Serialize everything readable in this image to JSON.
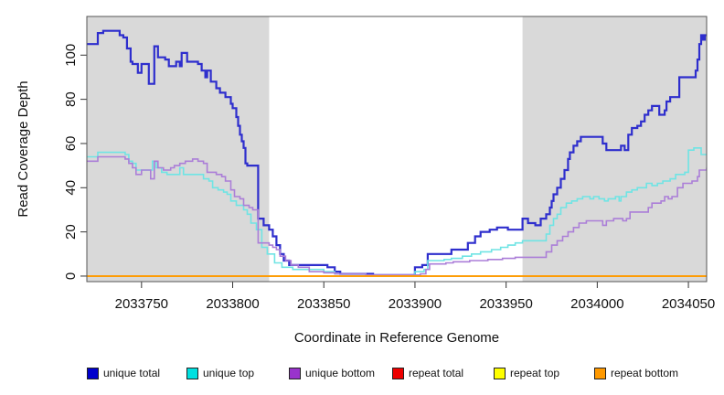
{
  "figure": {
    "x_axis": {
      "label": "Coordinate in Reference Genome",
      "tick_values": [
        2033750,
        2033800,
        2033850,
        2033900,
        2033950,
        2034000,
        2034050
      ],
      "tick_labels": [
        "2033750",
        "2033800",
        "2033850",
        "2033900",
        "2033950",
        "2034000",
        "2034050"
      ]
    },
    "y_axis": {
      "label": "Read Coverage Depth",
      "tick_values": [
        0,
        20,
        40,
        60,
        80,
        100
      ],
      "tick_labels": [
        "0",
        "20",
        "40",
        "60",
        "80",
        "100"
      ]
    }
  },
  "legend": {
    "items": [
      {
        "label": "unique total",
        "color": "#0000cc"
      },
      {
        "label": "unique top",
        "color": "#00e0e0"
      },
      {
        "label": "unique bottom",
        "color": "#9933cc"
      },
      {
        "label": "repeat total",
        "color": "#ee0000"
      },
      {
        "label": "repeat top",
        "color": "#ffff00"
      },
      {
        "label": "repeat bottom",
        "color": "#ff9900"
      }
    ]
  },
  "chart_data": {
    "type": "line",
    "subtype": "step",
    "title": "",
    "xlabel": "Coordinate in Reference Genome",
    "ylabel": "Read Coverage Depth",
    "xlim": [
      2033720,
      2034060
    ],
    "ylim": [
      -2.5,
      117.5
    ],
    "grid": false,
    "legend_position": "bottom",
    "background_color": "#ffffff",
    "shaded_regions": [
      {
        "x0": 2033720,
        "x1": 2033820,
        "color": "#d9d9d9",
        "meaning": "repeat region left"
      },
      {
        "x0": 2033959,
        "x1": 2034060,
        "color": "#d9d9d9",
        "meaning": "repeat region right"
      }
    ],
    "series": [
      {
        "name": "unique total",
        "line_color": "#2e2ecd",
        "line_width": 2.2,
        "points": [
          [
            2033720,
            105
          ],
          [
            2033726,
            110
          ],
          [
            2033729,
            111
          ],
          [
            2033738,
            109
          ],
          [
            2033740,
            108
          ],
          [
            2033742,
            103
          ],
          [
            2033744,
            97
          ],
          [
            2033745,
            96
          ],
          [
            2033748,
            92
          ],
          [
            2033750,
            96
          ],
          [
            2033754,
            87
          ],
          [
            2033757,
            104
          ],
          [
            2033759,
            99
          ],
          [
            2033763,
            98
          ],
          [
            2033765,
            95
          ],
          [
            2033769,
            97
          ],
          [
            2033771,
            95
          ],
          [
            2033772,
            101
          ],
          [
            2033775,
            97
          ],
          [
            2033781,
            96
          ],
          [
            2033783,
            93
          ],
          [
            2033785,
            90
          ],
          [
            2033786,
            93
          ],
          [
            2033788,
            88
          ],
          [
            2033791,
            85
          ],
          [
            2033793,
            83
          ],
          [
            2033796,
            81
          ],
          [
            2033799,
            78
          ],
          [
            2033800,
            76
          ],
          [
            2033802,
            72
          ],
          [
            2033803,
            68
          ],
          [
            2033804,
            64
          ],
          [
            2033805,
            61
          ],
          [
            2033806,
            58
          ],
          [
            2033807,
            51
          ],
          [
            2033808,
            50
          ],
          [
            2033814,
            26
          ],
          [
            2033817,
            23
          ],
          [
            2033820,
            21
          ],
          [
            2033822,
            18
          ],
          [
            2033824,
            14
          ],
          [
            2033826,
            10
          ],
          [
            2033828,
            7
          ],
          [
            2033831,
            5
          ],
          [
            2033852,
            4
          ],
          [
            2033856,
            2
          ],
          [
            2033859,
            1
          ],
          [
            2033877,
            0.5
          ],
          [
            2033898,
            0.5
          ],
          [
            2033900,
            4
          ],
          [
            2033904,
            5
          ],
          [
            2033907,
            10
          ],
          [
            2033917,
            10
          ],
          [
            2033920,
            12
          ],
          [
            2033929,
            15
          ],
          [
            2033933,
            18
          ],
          [
            2033936,
            20
          ],
          [
            2033941,
            21
          ],
          [
            2033945,
            22
          ],
          [
            2033951,
            21
          ],
          [
            2033959,
            26
          ],
          [
            2033962,
            24
          ],
          [
            2033966,
            23
          ],
          [
            2033969,
            26
          ],
          [
            2033972,
            28
          ],
          [
            2033974,
            31
          ],
          [
            2033975,
            34
          ],
          [
            2033976,
            37
          ],
          [
            2033978,
            40
          ],
          [
            2033980,
            44
          ],
          [
            2033982,
            48
          ],
          [
            2033984,
            53
          ],
          [
            2033985,
            56
          ],
          [
            2033987,
            59
          ],
          [
            2033989,
            61
          ],
          [
            2033991,
            63
          ],
          [
            2034001,
            63
          ],
          [
            2034003,
            60
          ],
          [
            2034005,
            57
          ],
          [
            2034012,
            57
          ],
          [
            2034013,
            59
          ],
          [
            2034015,
            57
          ],
          [
            2034017,
            64
          ],
          [
            2034019,
            67
          ],
          [
            2034022,
            68
          ],
          [
            2034024,
            70
          ],
          [
            2034026,
            73
          ],
          [
            2034028,
            75
          ],
          [
            2034030,
            77
          ],
          [
            2034034,
            73
          ],
          [
            2034037,
            75
          ],
          [
            2034038,
            79
          ],
          [
            2034040,
            81
          ],
          [
            2034043,
            81
          ],
          [
            2034045,
            90
          ],
          [
            2034053,
            90
          ],
          [
            2034054,
            93
          ],
          [
            2034055,
            98
          ],
          [
            2034056,
            105
          ],
          [
            2034057,
            109
          ],
          [
            2034058,
            107
          ],
          [
            2034059,
            109
          ],
          [
            2034060,
            109
          ]
        ]
      },
      {
        "name": "unique top",
        "line_color": "#6fe4e4",
        "line_width": 1.6,
        "points": [
          [
            2033720,
            54
          ],
          [
            2033726,
            56
          ],
          [
            2033738,
            56
          ],
          [
            2033741,
            55
          ],
          [
            2033743,
            52
          ],
          [
            2033745,
            51
          ],
          [
            2033747,
            48
          ],
          [
            2033754,
            48
          ],
          [
            2033756,
            52
          ],
          [
            2033758,
            49
          ],
          [
            2033761,
            47
          ],
          [
            2033764,
            46
          ],
          [
            2033768,
            46
          ],
          [
            2033771,
            49
          ],
          [
            2033773,
            46
          ],
          [
            2033781,
            46
          ],
          [
            2033784,
            44
          ],
          [
            2033787,
            43
          ],
          [
            2033789,
            40
          ],
          [
            2033792,
            39
          ],
          [
            2033795,
            38
          ],
          [
            2033797,
            37
          ],
          [
            2033799,
            34
          ],
          [
            2033802,
            32
          ],
          [
            2033806,
            30
          ],
          [
            2033808,
            28
          ],
          [
            2033810,
            24
          ],
          [
            2033813,
            21
          ],
          [
            2033816,
            13
          ],
          [
            2033819,
            10
          ],
          [
            2033823,
            6
          ],
          [
            2033827,
            4
          ],
          [
            2033833,
            3
          ],
          [
            2033850,
            2
          ],
          [
            2033856,
            1
          ],
          [
            2033873,
            0.5
          ],
          [
            2033898,
            0.5
          ],
          [
            2033900,
            2
          ],
          [
            2033905,
            3
          ],
          [
            2033907,
            7
          ],
          [
            2033916,
            7.5
          ],
          [
            2033920,
            8
          ],
          [
            2033926,
            9
          ],
          [
            2033931,
            10
          ],
          [
            2033936,
            11
          ],
          [
            2033942,
            12
          ],
          [
            2033947,
            13
          ],
          [
            2033951,
            14
          ],
          [
            2033955,
            15
          ],
          [
            2033959,
            16
          ],
          [
            2033969,
            16
          ],
          [
            2033972,
            19
          ],
          [
            2033974,
            23
          ],
          [
            2033976,
            26
          ],
          [
            2033978,
            28
          ],
          [
            2033980,
            31
          ],
          [
            2033983,
            33
          ],
          [
            2033986,
            34
          ],
          [
            2033989,
            35
          ],
          [
            2033992,
            36
          ],
          [
            2033996,
            35
          ],
          [
            2033998,
            36
          ],
          [
            2034001,
            35
          ],
          [
            2034004,
            34
          ],
          [
            2034006,
            35
          ],
          [
            2034010,
            36
          ],
          [
            2034012,
            34
          ],
          [
            2034013,
            36
          ],
          [
            2034016,
            38
          ],
          [
            2034019,
            39
          ],
          [
            2034022,
            40
          ],
          [
            2034027,
            42
          ],
          [
            2034030,
            41
          ],
          [
            2034033,
            42
          ],
          [
            2034036,
            43
          ],
          [
            2034040,
            44
          ],
          [
            2034043,
            46
          ],
          [
            2034048,
            47
          ],
          [
            2034050,
            57
          ],
          [
            2034053,
            58
          ],
          [
            2034057,
            55
          ],
          [
            2034060,
            55
          ]
        ]
      },
      {
        "name": "unique bottom",
        "line_color": "#ab7ed8",
        "line_width": 1.6,
        "points": [
          [
            2033720,
            52
          ],
          [
            2033726,
            54
          ],
          [
            2033738,
            54
          ],
          [
            2033741,
            53
          ],
          [
            2033743,
            51
          ],
          [
            2033745,
            49
          ],
          [
            2033747,
            46
          ],
          [
            2033750,
            48
          ],
          [
            2033754,
            48
          ],
          [
            2033755,
            44
          ],
          [
            2033757,
            52
          ],
          [
            2033759,
            49
          ],
          [
            2033762,
            48
          ],
          [
            2033766,
            49
          ],
          [
            2033768,
            50
          ],
          [
            2033771,
            51
          ],
          [
            2033774,
            52
          ],
          [
            2033778,
            53
          ],
          [
            2033781,
            52
          ],
          [
            2033784,
            51
          ],
          [
            2033786,
            47
          ],
          [
            2033791,
            46
          ],
          [
            2033794,
            45
          ],
          [
            2033796,
            43
          ],
          [
            2033799,
            39
          ],
          [
            2033801,
            36
          ],
          [
            2033804,
            35
          ],
          [
            2033806,
            32
          ],
          [
            2033809,
            31
          ],
          [
            2033811,
            30
          ],
          [
            2033814,
            15
          ],
          [
            2033820,
            14
          ],
          [
            2033822,
            13
          ],
          [
            2033824,
            12
          ],
          [
            2033826,
            9
          ],
          [
            2033829,
            7
          ],
          [
            2033832,
            5
          ],
          [
            2033836,
            4
          ],
          [
            2033842,
            2
          ],
          [
            2033850,
            1.5
          ],
          [
            2033856,
            1
          ],
          [
            2033873,
            0.5
          ],
          [
            2033900,
            0.5
          ],
          [
            2033903,
            1
          ],
          [
            2033906,
            3
          ],
          [
            2033908,
            5.5
          ],
          [
            2033917,
            6
          ],
          [
            2033921,
            6.5
          ],
          [
            2033930,
            7
          ],
          [
            2033940,
            7.5
          ],
          [
            2033948,
            8
          ],
          [
            2033955,
            8.5
          ],
          [
            2033969,
            8.5
          ],
          [
            2033972,
            11
          ],
          [
            2033975,
            14
          ],
          [
            2033978,
            16
          ],
          [
            2033981,
            18
          ],
          [
            2033984,
            20
          ],
          [
            2033987,
            22
          ],
          [
            2033990,
            24
          ],
          [
            2033994,
            25
          ],
          [
            2034001,
            25
          ],
          [
            2034003,
            23
          ],
          [
            2034005,
            25
          ],
          [
            2034009,
            26
          ],
          [
            2034014,
            25
          ],
          [
            2034016,
            26
          ],
          [
            2034018,
            29
          ],
          [
            2034026,
            29
          ],
          [
            2034028,
            31
          ],
          [
            2034030,
            33
          ],
          [
            2034035,
            34
          ],
          [
            2034037,
            36
          ],
          [
            2034039,
            35
          ],
          [
            2034041,
            36
          ],
          [
            2034044,
            40
          ],
          [
            2034047,
            42
          ],
          [
            2034052,
            43
          ],
          [
            2034055,
            45
          ],
          [
            2034056,
            48
          ],
          [
            2034060,
            49
          ]
        ]
      },
      {
        "name": "repeat total",
        "line_color": "#ee0000",
        "line_width": 1.6,
        "points": [
          [
            2033720,
            0
          ],
          [
            2034060,
            0
          ]
        ]
      },
      {
        "name": "repeat top",
        "line_color": "#ffff00",
        "line_width": 1.6,
        "points": [
          [
            2033720,
            0
          ],
          [
            2034060,
            0
          ]
        ]
      },
      {
        "name": "repeat bottom",
        "line_color": "#ff9900",
        "line_width": 1.8,
        "points": [
          [
            2033720,
            0
          ],
          [
            2034060,
            0
          ]
        ]
      }
    ]
  }
}
